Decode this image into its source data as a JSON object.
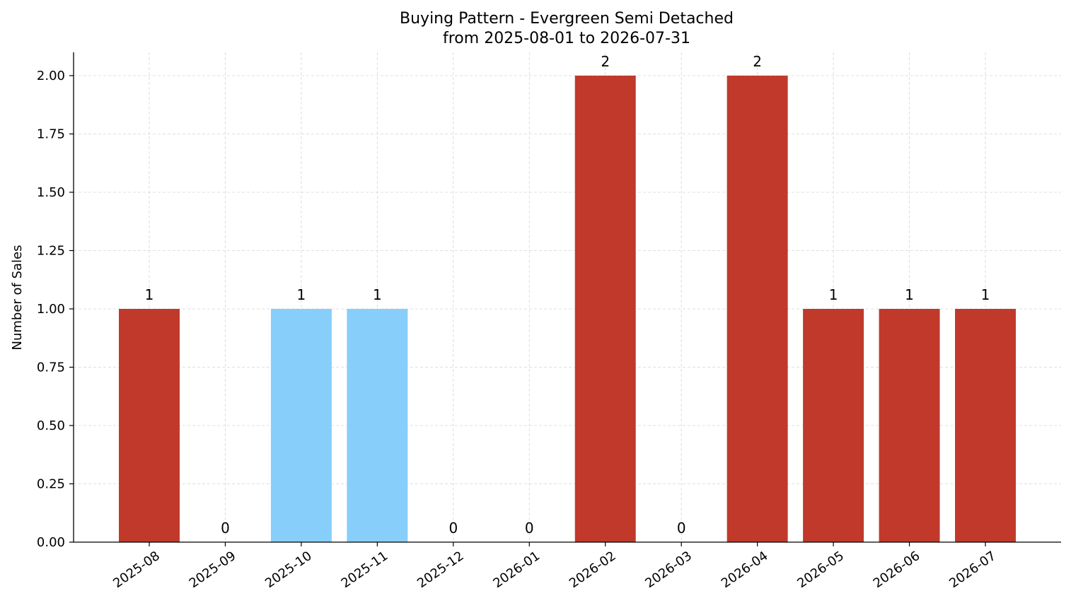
{
  "chart_data": {
    "type": "bar",
    "title": "Buying Pattern - Evergreen Semi Detached",
    "subtitle": "from 2025-08-01 to 2026-07-31",
    "xlabel": "",
    "ylabel": "Number of Sales",
    "categories": [
      "2025-08",
      "2025-09",
      "2025-10",
      "2025-11",
      "2025-12",
      "2026-01",
      "2026-02",
      "2026-03",
      "2026-04",
      "2026-05",
      "2026-06",
      "2026-07"
    ],
    "values": [
      1,
      0,
      1,
      1,
      0,
      0,
      2,
      0,
      2,
      1,
      1,
      1
    ],
    "value_labels": [
      "1",
      "0",
      "1",
      "1",
      "0",
      "0",
      "2",
      "0",
      "2",
      "1",
      "1",
      "1"
    ],
    "bar_colors": [
      "#c0392b",
      "#c0392b",
      "#87cefa",
      "#87cefa",
      "#c0392b",
      "#c0392b",
      "#c0392b",
      "#c0392b",
      "#c0392b",
      "#c0392b",
      "#c0392b",
      "#c0392b"
    ],
    "ylim": [
      0,
      2.1
    ],
    "yticks": [
      0,
      0.25,
      0.5,
      0.75,
      1,
      1.25,
      1.5,
      1.75,
      2
    ],
    "ytick_labels": [
      "0.00",
      "0.25",
      "0.50",
      "0.75",
      "1.00",
      "1.25",
      "1.50",
      "1.75",
      "2.00"
    ],
    "grid": true,
    "legend": false,
    "colors": {
      "primary": "#c0392b",
      "highlight": "#87cefa",
      "grid": "#d5d5d5"
    }
  }
}
